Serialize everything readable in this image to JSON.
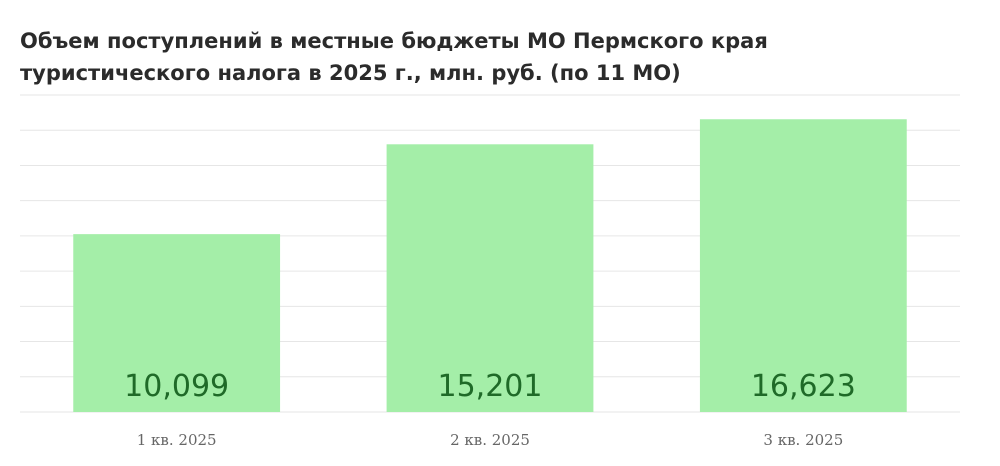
{
  "chart_data": {
    "type": "bar",
    "title_lines": [
      "Объем поступлений в местные бюджеты МО Пермского края",
      "туристического налога в 2025 г., млн. руб. (по 11 МО)"
    ],
    "categories": [
      "1 кв. 2025",
      "2 кв. 2025",
      "3 кв. 2025"
    ],
    "values": [
      10.099,
      15.201,
      16.623
    ],
    "value_labels": [
      "10,099",
      "15,201",
      "16,623"
    ],
    "color": "#a4eea8",
    "ylim": [
      0,
      18
    ],
    "yticks": [
      0,
      2,
      4,
      6,
      8,
      10,
      12,
      14,
      16,
      18
    ],
    "ytick_labels": false,
    "grid": true
  }
}
